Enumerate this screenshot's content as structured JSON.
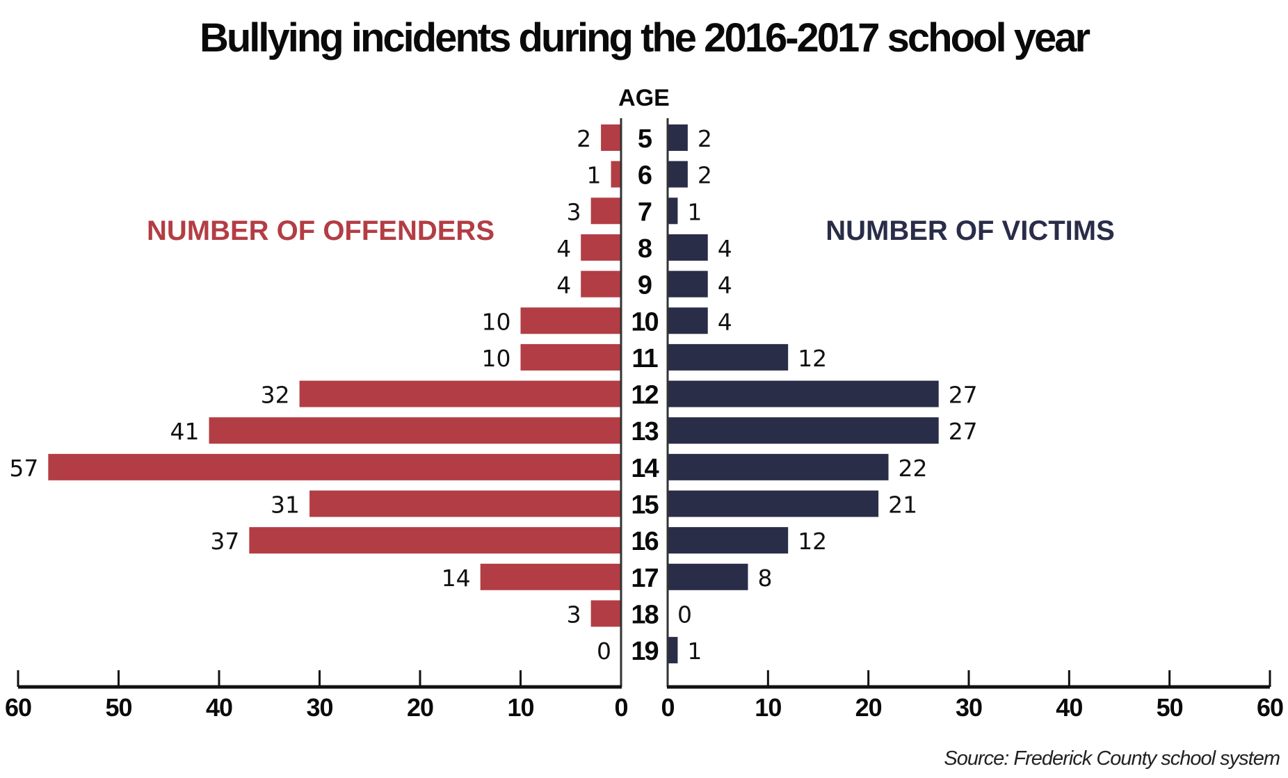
{
  "chart_data": {
    "type": "bar",
    "orientation": "horizontal-butterfly",
    "title": "Bullying incidents during the 2016-2017 school year",
    "category_axis_label": "AGE",
    "categories": [
      "5",
      "6",
      "7",
      "8",
      "9",
      "10",
      "11",
      "12",
      "13",
      "14",
      "15",
      "16",
      "17",
      "18",
      "19"
    ],
    "series": [
      {
        "name": "NUMBER OF OFFENDERS",
        "side": "left",
        "color": "#b33d44",
        "values": [
          2,
          1,
          3,
          4,
          4,
          10,
          10,
          32,
          41,
          57,
          31,
          37,
          14,
          3,
          0
        ]
      },
      {
        "name": "NUMBER OF VICTIMS",
        "side": "right",
        "color": "#292d48",
        "values": [
          2,
          2,
          1,
          4,
          4,
          4,
          12,
          27,
          27,
          22,
          21,
          12,
          8,
          0,
          1
        ]
      }
    ],
    "xlim": [
      0,
      60
    ],
    "x_ticks": [
      0,
      10,
      20,
      30,
      40,
      50,
      60
    ],
    "x_tick_labels": [
      "0",
      "10",
      "20",
      "30",
      "40",
      "50",
      "60"
    ],
    "grid": false,
    "source": "Source: Frederick County school system"
  }
}
